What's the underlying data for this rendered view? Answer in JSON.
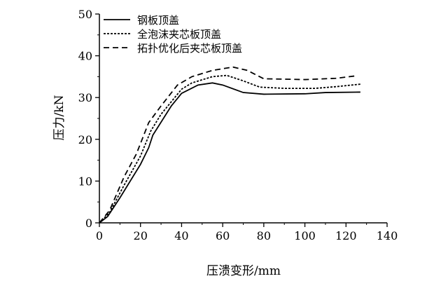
{
  "chart_data": {
    "type": "line",
    "title": "",
    "xlabel": "压溃变形/mm",
    "ylabel": "压力/kN",
    "xlim": [
      0,
      140
    ],
    "ylim": [
      0,
      50
    ],
    "xticks": [
      0,
      20,
      40,
      60,
      80,
      100,
      120,
      140
    ],
    "yticks": [
      0,
      10,
      20,
      30,
      40,
      50
    ],
    "grid": false,
    "legend_position": "top-left",
    "series": [
      {
        "name": "钢板顶盖",
        "style": "solid",
        "points": [
          [
            0,
            0
          ],
          [
            4,
            1.5
          ],
          [
            10,
            6
          ],
          [
            20,
            14
          ],
          [
            24,
            18
          ],
          [
            26,
            21
          ],
          [
            35,
            28
          ],
          [
            40,
            31
          ],
          [
            48,
            33
          ],
          [
            55,
            33.5
          ],
          [
            60,
            33
          ],
          [
            70,
            31.2
          ],
          [
            80,
            30.8
          ],
          [
            100,
            30.9
          ],
          [
            110,
            31.2
          ],
          [
            127,
            31.3
          ]
        ]
      },
      {
        "name": "全泡沫夹芯板顶盖",
        "style": "dotted",
        "points": [
          [
            0,
            0
          ],
          [
            5,
            2.5
          ],
          [
            12,
            9
          ],
          [
            20,
            16
          ],
          [
            25,
            22
          ],
          [
            30,
            26
          ],
          [
            40,
            32
          ],
          [
            45,
            33.5
          ],
          [
            55,
            35
          ],
          [
            62,
            35.3
          ],
          [
            70,
            34
          ],
          [
            78,
            32.5
          ],
          [
            90,
            32.2
          ],
          [
            105,
            32.2
          ],
          [
            115,
            32.6
          ],
          [
            127,
            33.2
          ]
        ]
      },
      {
        "name": "拓扑优化后夹芯板顶盖",
        "style": "dashed",
        "points": [
          [
            0,
            0
          ],
          [
            5,
            3
          ],
          [
            12,
            11
          ],
          [
            18,
            16.5
          ],
          [
            24,
            24
          ],
          [
            30,
            28
          ],
          [
            38,
            33
          ],
          [
            45,
            35
          ],
          [
            55,
            36.5
          ],
          [
            65,
            37.3
          ],
          [
            72,
            36.5
          ],
          [
            80,
            34.5
          ],
          [
            100,
            34.3
          ],
          [
            115,
            34.6
          ],
          [
            125,
            35.2
          ]
        ]
      }
    ]
  }
}
